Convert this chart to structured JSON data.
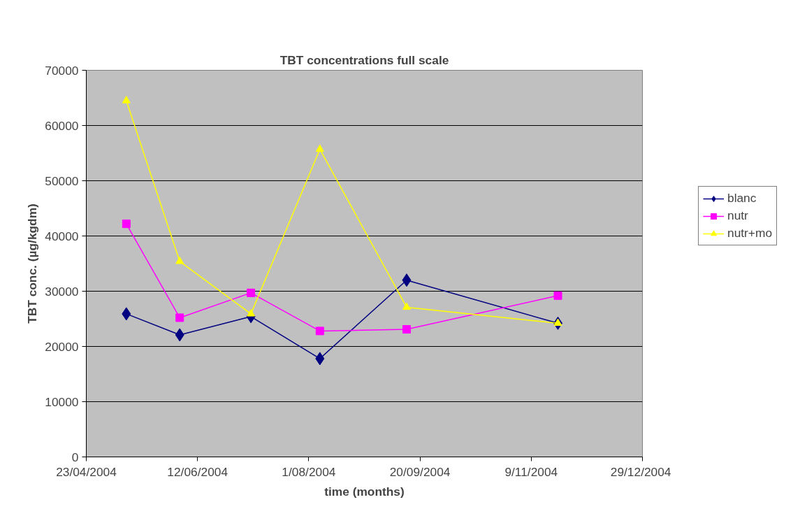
{
  "chart_data": {
    "type": "line",
    "title": "TBT concentrations full scale",
    "xlabel": "time (months)",
    "ylabel": "TBT conc. (µg/kgdm)",
    "x": [
      "2004-05-11",
      "2004-06-04",
      "2004-07-06",
      "2004-08-06",
      "2004-09-14",
      "2004-11-21"
    ],
    "series": [
      {
        "name": "blanc",
        "color": "#000080",
        "marker": "diamond",
        "values": [
          25900,
          22100,
          25400,
          17800,
          32000,
          24200
        ]
      },
      {
        "name": "nutr",
        "color": "#ff00ff",
        "marker": "square",
        "values": [
          42200,
          25200,
          29700,
          22800,
          23100,
          29200
        ]
      },
      {
        "name": "nutr+mo",
        "color": "#ffff00",
        "marker": "triangle",
        "values": [
          64500,
          35400,
          25900,
          55700,
          27100,
          24200
        ]
      }
    ],
    "xlim": [
      "2004-04-23",
      "2004-12-29"
    ],
    "xticks": [
      {
        "value": "2004-04-23",
        "label": "23/04/2004"
      },
      {
        "value": "2004-06-12",
        "label": "12/06/2004"
      },
      {
        "value": "2004-08-01",
        "label": "1/08/2004"
      },
      {
        "value": "2004-09-20",
        "label": "20/09/2004"
      },
      {
        "value": "2004-11-09",
        "label": "9/11/2004"
      },
      {
        "value": "2004-12-29",
        "label": "29/12/2004"
      }
    ],
    "ylim": [
      0,
      70000
    ],
    "yticks": [
      0,
      10000,
      20000,
      30000,
      40000,
      50000,
      60000,
      70000
    ],
    "grid": "y",
    "legend": "right",
    "line_style": "solid"
  }
}
